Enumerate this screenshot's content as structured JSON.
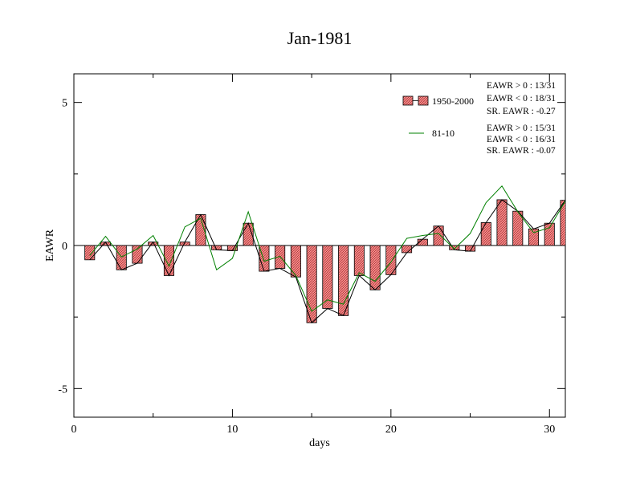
{
  "chart_data": {
    "type": "bar",
    "title": "Jan-1981",
    "xlabel": "days",
    "ylabel": "EAWR",
    "xlim": [
      0,
      31
    ],
    "ylim": [
      -6,
      6
    ],
    "x_ticks": [
      0,
      10,
      20,
      30
    ],
    "x_tick_labels": [
      "0",
      "10",
      "20",
      "30"
    ],
    "y_ticks": [
      -5,
      0,
      5
    ],
    "y_tick_labels": [
      "-5",
      "0",
      "5"
    ],
    "grid": false,
    "legend_position": "top-right",
    "x": [
      1,
      2,
      3,
      4,
      5,
      6,
      7,
      8,
      9,
      10,
      11,
      12,
      13,
      14,
      15,
      16,
      17,
      18,
      19,
      20,
      21,
      22,
      23,
      24,
      25,
      26,
      27,
      28,
      29,
      30,
      31
    ],
    "series": [
      {
        "name": "1950-2000",
        "kind": "bar",
        "color": "#ff8080",
        "values": [
          -0.5,
          0.12,
          -0.85,
          -0.62,
          0.12,
          -1.05,
          0.12,
          1.08,
          -0.15,
          -0.18,
          0.78,
          -0.9,
          -0.8,
          -1.1,
          -2.7,
          -2.2,
          -2.45,
          -1.05,
          -1.55,
          -1.02,
          -0.25,
          0.22,
          0.68,
          -0.15,
          -0.2,
          0.8,
          1.6,
          1.2,
          0.58,
          0.78,
          1.58
        ]
      },
      {
        "name": "1950-2000 line",
        "kind": "line",
        "color": "#000000",
        "values": [
          -0.5,
          0.12,
          -0.85,
          -0.62,
          0.12,
          -1.05,
          0.12,
          1.08,
          -0.15,
          -0.18,
          0.78,
          -0.9,
          -0.8,
          -1.1,
          -2.7,
          -2.2,
          -2.45,
          -1.05,
          -1.55,
          -1.02,
          -0.25,
          0.22,
          0.68,
          -0.15,
          -0.2,
          0.8,
          1.6,
          1.2,
          0.58,
          0.78,
          1.58
        ]
      },
      {
        "name": "81-10",
        "kind": "line",
        "color": "#008000",
        "values": [
          -0.35,
          0.32,
          -0.4,
          -0.12,
          0.35,
          -0.72,
          0.65,
          0.95,
          -0.85,
          -0.45,
          1.18,
          -0.55,
          -0.38,
          -1.05,
          -2.3,
          -1.9,
          -2.05,
          -0.95,
          -1.25,
          -0.58,
          0.25,
          0.35,
          0.42,
          -0.12,
          0.42,
          1.5,
          2.08,
          1.18,
          0.45,
          0.62,
          1.55
        ]
      }
    ],
    "stats": {
      "bars": [
        "EAWR > 0 : 13/31",
        "EAWR < 0 : 18/31",
        "SR. EAWR : -0.27"
      ],
      "line": [
        "EAWR > 0 : 15/31",
        "EAWR < 0 : 16/31",
        "SR. EAWR : -0.07"
      ]
    }
  }
}
